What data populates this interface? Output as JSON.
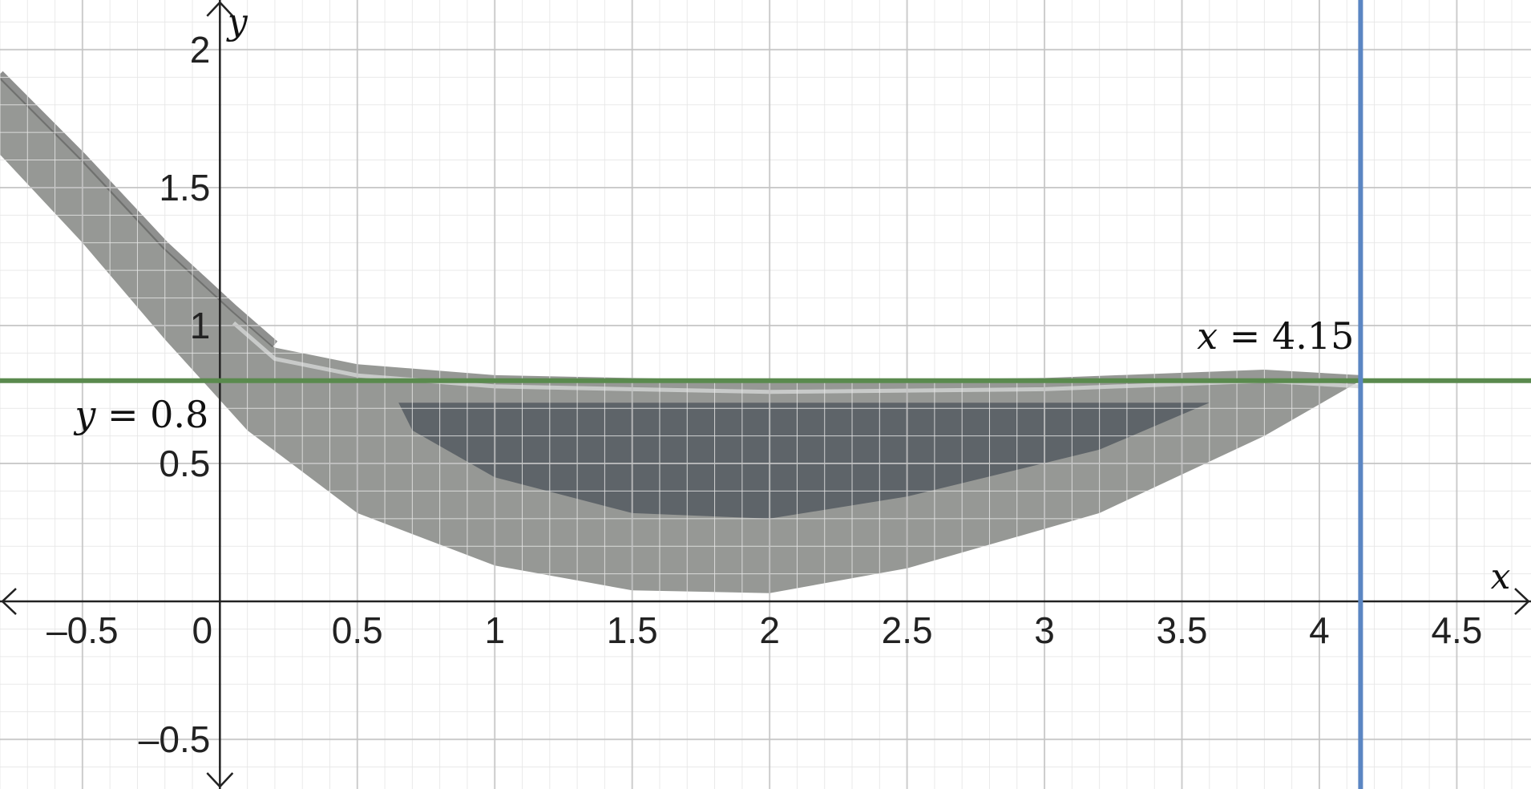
{
  "chart_data": {
    "type": "line",
    "title": "",
    "xlabel": "x",
    "ylabel": "y",
    "xlim": [
      -0.8,
      4.77
    ],
    "ylim": [
      -0.68,
      2.18
    ],
    "grid": true,
    "minor_grid": true,
    "x_ticks": [
      "–0.5",
      "0",
      "0.5",
      "1",
      "1.5",
      "2",
      "2.5",
      "3",
      "3.5",
      "4",
      "4.5"
    ],
    "y_ticks": [
      "–0.5",
      "0.5",
      "1",
      "1.5",
      "2"
    ],
    "lines": [
      {
        "name": "horizontal-line",
        "orientation": "horizontal",
        "value": 0.8,
        "label_var": "y",
        "label_eq": " = ",
        "label_num": "0.8",
        "color": "#5a8a4e"
      },
      {
        "name": "vertical-line",
        "orientation": "vertical",
        "value": 4.15,
        "label_var": "x",
        "label_eq": " = ",
        "label_num": "4.15",
        "color": "#5b86c3"
      }
    ],
    "background_image": {
      "subject": "golf club head (iron) photograph",
      "outline_top": [
        [
          -0.8,
          1.9
        ],
        [
          -0.5,
          1.6
        ],
        [
          -0.2,
          1.28
        ],
        [
          0.05,
          1.05
        ],
        [
          0.2,
          0.92
        ],
        [
          0.5,
          0.86
        ],
        [
          1.0,
          0.82
        ],
        [
          2.0,
          0.8
        ],
        [
          3.0,
          0.81
        ],
        [
          3.8,
          0.84
        ],
        [
          4.15,
          0.82
        ]
      ],
      "outline_bottom": [
        [
          4.15,
          0.8
        ],
        [
          3.8,
          0.6
        ],
        [
          3.2,
          0.32
        ],
        [
          2.5,
          0.12
        ],
        [
          2.0,
          0.03
        ],
        [
          1.5,
          0.04
        ],
        [
          1.0,
          0.13
        ],
        [
          0.5,
          0.32
        ],
        [
          0.1,
          0.62
        ],
        [
          -0.2,
          0.95
        ],
        [
          -0.5,
          1.3
        ],
        [
          -0.8,
          1.62
        ]
      ],
      "inner_face": [
        [
          0.65,
          0.72
        ],
        [
          1.4,
          0.72
        ],
        [
          2.5,
          0.72
        ],
        [
          3.6,
          0.72
        ],
        [
          3.2,
          0.55
        ],
        [
          2.5,
          0.38
        ],
        [
          2.0,
          0.3
        ],
        [
          1.5,
          0.32
        ],
        [
          1.0,
          0.45
        ],
        [
          0.7,
          0.62
        ]
      ],
      "colors": {
        "body": "#8b8d8a",
        "face": "#555a62",
        "highlight": "#d4d7d6"
      }
    }
  }
}
